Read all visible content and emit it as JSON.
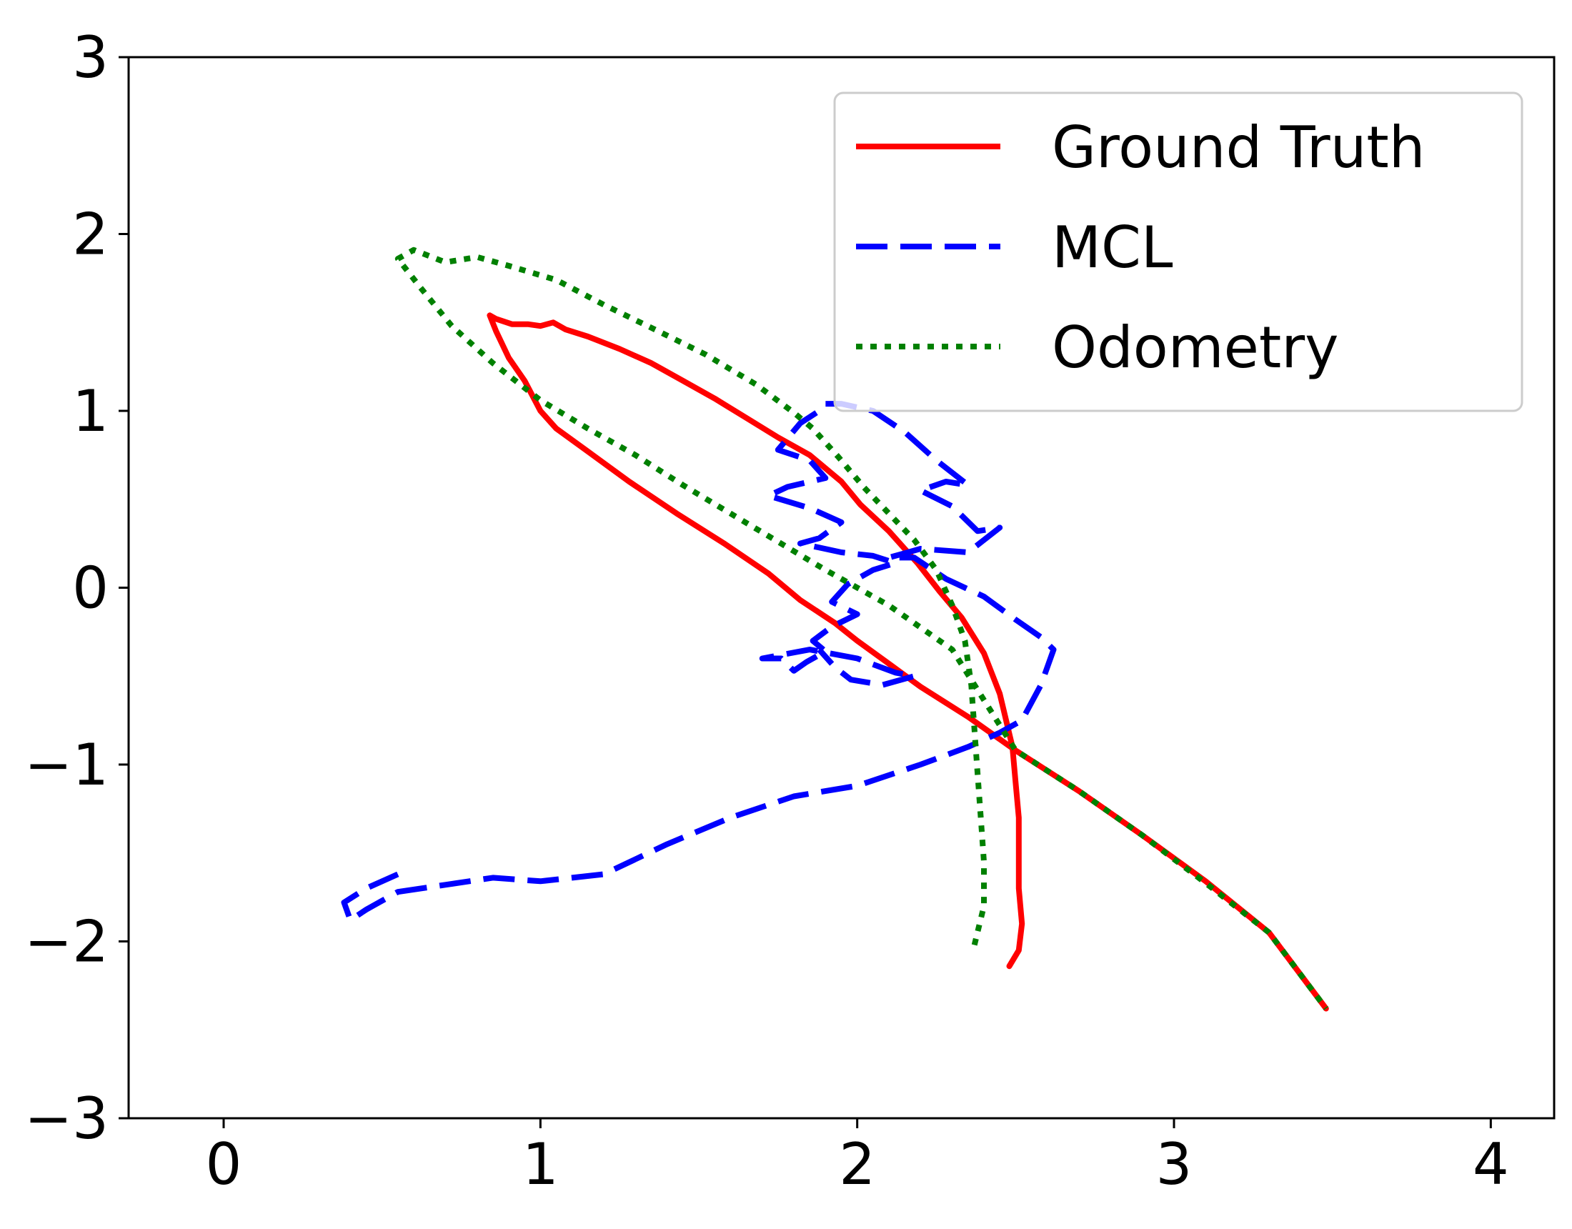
{
  "chart_data": {
    "type": "line",
    "title": "",
    "xlabel": "",
    "ylabel": "",
    "xlim": [
      -0.3,
      4.2
    ],
    "ylim": [
      -3,
      3
    ],
    "grid": false,
    "legend_position": "top-right",
    "xticks": [
      0,
      1,
      2,
      3,
      4
    ],
    "yticks": [
      -3,
      -2,
      -1,
      0,
      1,
      2,
      3
    ],
    "xtick_labels": [
      "0",
      "1",
      "2",
      "3",
      "4"
    ],
    "ytick_labels": [
      "−3",
      "−2",
      "−1",
      "0",
      "1",
      "2",
      "3"
    ],
    "series": [
      {
        "name": "Ground Truth",
        "color": "#ff0000",
        "style": "solid",
        "x": [
          2.48,
          2.51,
          2.52,
          2.51,
          2.51,
          2.51,
          2.5,
          2.49,
          2.45,
          2.4,
          2.33,
          2.26,
          2.19,
          2.1,
          2.01,
          1.95,
          1.85,
          1.75,
          1.65,
          1.55,
          1.45,
          1.35,
          1.25,
          1.15,
          1.08,
          1.04,
          1.0,
          0.96,
          0.91,
          0.86,
          0.84,
          0.86,
          0.9,
          0.95,
          1.0,
          1.05,
          1.15,
          1.28,
          1.43,
          1.58,
          1.72,
          1.82,
          1.93,
          2.0,
          2.1,
          2.2,
          2.35,
          2.5,
          2.7,
          2.9,
          3.1,
          3.3,
          3.48
        ],
        "y": [
          -2.14,
          -2.05,
          -1.9,
          -1.7,
          -1.5,
          -1.3,
          -1.1,
          -0.9,
          -0.6,
          -0.37,
          -0.17,
          -0.02,
          0.14,
          0.32,
          0.47,
          0.6,
          0.75,
          0.85,
          0.96,
          1.07,
          1.17,
          1.27,
          1.35,
          1.42,
          1.46,
          1.5,
          1.48,
          1.49,
          1.49,
          1.52,
          1.54,
          1.45,
          1.3,
          1.17,
          1.0,
          0.9,
          0.77,
          0.6,
          0.42,
          0.25,
          0.08,
          -0.07,
          -0.2,
          -0.3,
          -0.43,
          -0.56,
          -0.73,
          -0.92,
          -1.15,
          -1.4,
          -1.66,
          -1.95,
          -2.38
        ]
      },
      {
        "name": "MCL",
        "color": "#0000ff",
        "style": "dashed",
        "x": [
          0.55,
          0.45,
          0.38,
          0.4,
          0.45,
          0.55,
          0.7,
          0.85,
          1.0,
          1.2,
          1.4,
          1.6,
          1.8,
          2.0,
          2.2,
          2.35,
          2.45,
          2.52,
          2.58,
          2.62,
          2.58,
          2.5,
          2.4,
          2.28,
          2.18,
          2.1,
          2.2,
          2.35,
          2.45,
          2.38,
          2.3,
          2.2,
          2.28,
          2.35,
          2.25,
          2.15,
          2.05,
          1.95,
          1.9,
          1.88,
          1.82,
          1.75,
          1.85,
          1.9,
          1.78,
          1.72,
          1.85,
          1.95,
          1.88,
          1.82,
          1.95,
          2.05,
          2.12,
          2.05,
          1.97,
          1.92,
          2.0,
          1.92,
          1.86,
          1.9,
          1.84,
          1.8,
          1.76,
          1.7,
          1.85,
          2.0,
          2.12,
          2.18,
          2.08,
          1.98,
          1.93,
          1.88
        ],
        "y": [
          -1.62,
          -1.7,
          -1.78,
          -1.88,
          -1.82,
          -1.72,
          -1.68,
          -1.64,
          -1.66,
          -1.62,
          -1.45,
          -1.3,
          -1.18,
          -1.12,
          -1.0,
          -0.9,
          -0.82,
          -0.75,
          -0.55,
          -0.35,
          -0.28,
          -0.18,
          -0.05,
          0.05,
          0.17,
          0.17,
          0.22,
          0.2,
          0.34,
          0.32,
          0.46,
          0.55,
          0.6,
          0.58,
          0.72,
          0.88,
          1.0,
          1.04,
          1.04,
          1.0,
          0.93,
          0.78,
          0.72,
          0.62,
          0.57,
          0.52,
          0.45,
          0.37,
          0.28,
          0.25,
          0.2,
          0.18,
          0.14,
          0.1,
          0.02,
          -0.08,
          -0.15,
          -0.22,
          -0.3,
          -0.36,
          -0.42,
          -0.47,
          -0.4,
          -0.4,
          -0.35,
          -0.4,
          -0.48,
          -0.5,
          -0.55,
          -0.52,
          -0.45,
          -0.35
        ]
      },
      {
        "name": "Odometry",
        "color": "#008000",
        "style": "dotted",
        "x": [
          2.37,
          2.4,
          2.4,
          2.39,
          2.38,
          2.37,
          2.36,
          2.34,
          2.3,
          2.25,
          2.18,
          2.1,
          2.02,
          1.94,
          1.86,
          1.8,
          1.68,
          1.52,
          1.35,
          1.2,
          1.05,
          0.9,
          0.8,
          0.7,
          0.6,
          0.55,
          0.62,
          0.72,
          0.85,
          1.0,
          1.15,
          1.3,
          1.45,
          1.6,
          1.75,
          1.9,
          2.1,
          2.3,
          2.5,
          2.7,
          2.9,
          3.1,
          3.3,
          3.48
        ],
        "y": [
          -2.02,
          -1.8,
          -1.55,
          -1.3,
          -1.05,
          -0.8,
          -0.55,
          -0.3,
          -0.1,
          0.1,
          0.27,
          0.42,
          0.57,
          0.74,
          0.9,
          0.99,
          1.15,
          1.32,
          1.47,
          1.6,
          1.74,
          1.82,
          1.87,
          1.84,
          1.91,
          1.86,
          1.7,
          1.48,
          1.27,
          1.06,
          0.9,
          0.75,
          0.58,
          0.42,
          0.26,
          0.1,
          -0.1,
          -0.35,
          -0.92,
          -1.15,
          -1.4,
          -1.67,
          -1.95,
          -2.38
        ]
      }
    ]
  }
}
